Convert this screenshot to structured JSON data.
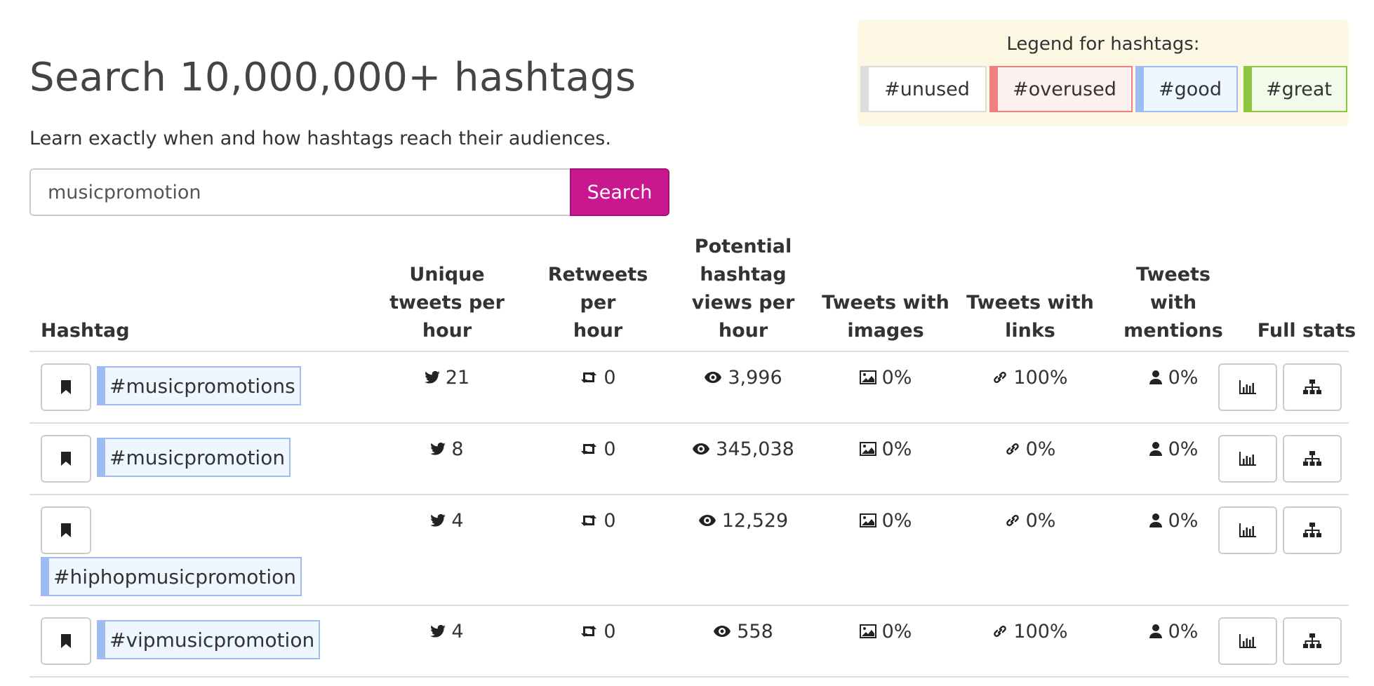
{
  "legend": {
    "title": "Legend for hashtags:",
    "tags": {
      "unused": "#unused",
      "overused": "#overused",
      "good": "#good",
      "great": "#great"
    },
    "colors": {
      "unused": "#dcdcdc",
      "overused": "#f08080",
      "good": "#9cbcf2",
      "great": "#8cc63f"
    }
  },
  "header": {
    "title": "Search 10,000,000+ hashtags",
    "subtitle": "Learn exactly when and how hashtags reach their audiences."
  },
  "search": {
    "value": "musicpromotion",
    "button_label": "Search",
    "button_color": "#c9178f"
  },
  "table": {
    "headers": {
      "hashtag": "Hashtag",
      "unique": [
        "Unique",
        "tweets per",
        "hour"
      ],
      "retweets": [
        "Retweets per",
        "hour"
      ],
      "views": [
        "Potential",
        "hashtag",
        "views per",
        "hour"
      ],
      "images": [
        "Tweets with",
        "images"
      ],
      "links": [
        "Tweets with",
        "links"
      ],
      "mentions": [
        "Tweets",
        "with",
        "mentions"
      ],
      "full": "Full stats"
    },
    "rows": [
      {
        "hashtag": "#musicpromotions",
        "status": "good",
        "unique": "21",
        "retweets": "0",
        "views": "3,996",
        "images": "0%",
        "links": "100%",
        "mentions": "0%"
      },
      {
        "hashtag": "#musicpromotion",
        "status": "good",
        "unique": "8",
        "retweets": "0",
        "views": "345,038",
        "images": "0%",
        "links": "0%",
        "mentions": "0%"
      },
      {
        "hashtag": "#hiphopmusicpromotion",
        "status": "good",
        "unique": "4",
        "retweets": "0",
        "views": "12,529",
        "images": "0%",
        "links": "0%",
        "mentions": "0%"
      },
      {
        "hashtag": "#vipmusicpromotion",
        "status": "good",
        "unique": "4",
        "retweets": "0",
        "views": "558",
        "images": "0%",
        "links": "100%",
        "mentions": "0%"
      }
    ]
  },
  "icons": {
    "bookmark": "bookmark-icon",
    "tweets": "twitter-bird-icon",
    "retweets": "retweet-icon",
    "views": "eye-icon",
    "images": "image-icon",
    "links": "link-icon",
    "mentions": "user-icon",
    "stats": "bar-chart-icon",
    "tree": "sitemap-icon"
  }
}
